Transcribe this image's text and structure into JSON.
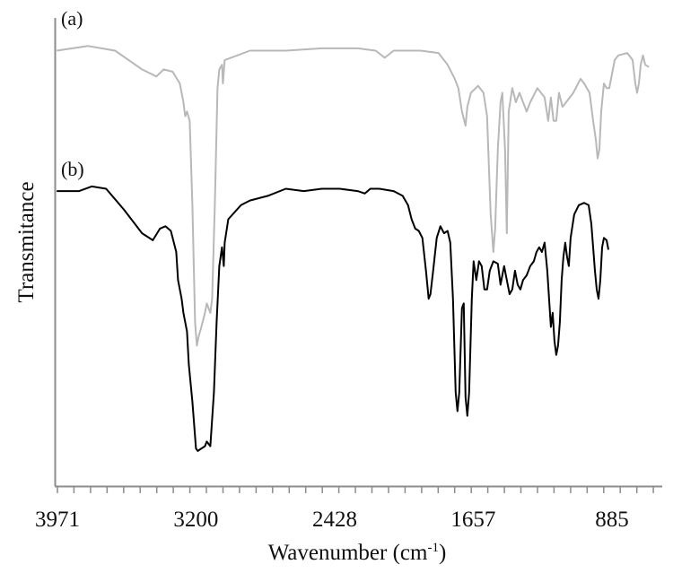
{
  "chart_data": {
    "type": "line",
    "title": "",
    "xlabel": "Wavenumber (cm-1)",
    "xlabel_main": "Wavenumber (cm",
    "xlabel_sup": "-1",
    "xlabel_close": ")",
    "ylabel": "Transmitance",
    "x_reversed": true,
    "xlim": [
      4000,
      600
    ],
    "x_ticks": [
      3971,
      3200,
      2428,
      1657,
      885
    ],
    "x_tick_labels": [
      "3971",
      "3200",
      "2428",
      "1657",
      "885"
    ],
    "y_ticks": [],
    "grid": false,
    "legend": null,
    "annotations": [
      "(a)",
      "(b)"
    ],
    "series": [
      {
        "name": "(a)",
        "color": "#b8b8b8",
        "points": [
          [
            3975,
            0.93
          ],
          [
            3800,
            0.94
          ],
          [
            3650,
            0.93
          ],
          [
            3500,
            0.89
          ],
          [
            3420,
            0.875
          ],
          [
            3380,
            0.89
          ],
          [
            3330,
            0.885
          ],
          [
            3290,
            0.86
          ],
          [
            3270,
            0.82
          ],
          [
            3260,
            0.79
          ],
          [
            3250,
            0.8
          ],
          [
            3235,
            0.78
          ],
          [
            3220,
            0.6
          ],
          [
            3205,
            0.35
          ],
          [
            3195,
            0.3
          ],
          [
            3185,
            0.32
          ],
          [
            3170,
            0.34
          ],
          [
            3150,
            0.37
          ],
          [
            3140,
            0.39
          ],
          [
            3120,
            0.37
          ],
          [
            3110,
            0.4
          ],
          [
            3095,
            0.6
          ],
          [
            3080,
            0.85
          ],
          [
            3070,
            0.89
          ],
          [
            3055,
            0.9
          ],
          [
            3050,
            0.86
          ],
          [
            3040,
            0.91
          ],
          [
            2900,
            0.93
          ],
          [
            2700,
            0.93
          ],
          [
            2500,
            0.935
          ],
          [
            2300,
            0.935
          ],
          [
            2200,
            0.93
          ],
          [
            2150,
            0.915
          ],
          [
            2100,
            0.93
          ],
          [
            1950,
            0.93
          ],
          [
            1850,
            0.925
          ],
          [
            1800,
            0.9
          ],
          [
            1760,
            0.87
          ],
          [
            1740,
            0.85
          ],
          [
            1720,
            0.8
          ],
          [
            1700,
            0.77
          ],
          [
            1690,
            0.81
          ],
          [
            1670,
            0.84
          ],
          [
            1630,
            0.855
          ],
          [
            1600,
            0.84
          ],
          [
            1580,
            0.79
          ],
          [
            1560,
            0.58
          ],
          [
            1545,
            0.5
          ],
          [
            1535,
            0.55
          ],
          [
            1520,
            0.72
          ],
          [
            1505,
            0.82
          ],
          [
            1495,
            0.84
          ],
          [
            1480,
            0.72
          ],
          [
            1470,
            0.54
          ],
          [
            1460,
            0.8
          ],
          [
            1440,
            0.85
          ],
          [
            1420,
            0.82
          ],
          [
            1400,
            0.84
          ],
          [
            1380,
            0.82
          ],
          [
            1360,
            0.8
          ],
          [
            1340,
            0.82
          ],
          [
            1300,
            0.85
          ],
          [
            1260,
            0.83
          ],
          [
            1240,
            0.78
          ],
          [
            1225,
            0.83
          ],
          [
            1210,
            0.78
          ],
          [
            1195,
            0.78
          ],
          [
            1180,
            0.84
          ],
          [
            1160,
            0.81
          ],
          [
            1140,
            0.82
          ],
          [
            1100,
            0.84
          ],
          [
            1060,
            0.87
          ],
          [
            1040,
            0.86
          ],
          [
            1010,
            0.84
          ],
          [
            990,
            0.78
          ],
          [
            975,
            0.74
          ],
          [
            965,
            0.7
          ],
          [
            955,
            0.72
          ],
          [
            945,
            0.8
          ],
          [
            930,
            0.86
          ],
          [
            915,
            0.85
          ],
          [
            900,
            0.85
          ],
          [
            870,
            0.91
          ],
          [
            850,
            0.92
          ],
          [
            800,
            0.925
          ],
          [
            770,
            0.91
          ],
          [
            755,
            0.86
          ],
          [
            745,
            0.84
          ],
          [
            735,
            0.86
          ],
          [
            725,
            0.9
          ],
          [
            712,
            0.92
          ],
          [
            700,
            0.9
          ],
          [
            680,
            0.895
          ]
        ]
      },
      {
        "name": "(b)",
        "color": "#000000",
        "points": [
          [
            3975,
            0.63
          ],
          [
            3850,
            0.63
          ],
          [
            3780,
            0.64
          ],
          [
            3700,
            0.635
          ],
          [
            3600,
            0.59
          ],
          [
            3500,
            0.54
          ],
          [
            3440,
            0.525
          ],
          [
            3400,
            0.55
          ],
          [
            3370,
            0.555
          ],
          [
            3340,
            0.545
          ],
          [
            3310,
            0.5
          ],
          [
            3300,
            0.44
          ],
          [
            3280,
            0.4
          ],
          [
            3270,
            0.37
          ],
          [
            3260,
            0.35
          ],
          [
            3250,
            0.33
          ],
          [
            3240,
            0.26
          ],
          [
            3220,
            0.18
          ],
          [
            3200,
            0.08
          ],
          [
            3190,
            0.075
          ],
          [
            3170,
            0.08
          ],
          [
            3150,
            0.085
          ],
          [
            3140,
            0.095
          ],
          [
            3120,
            0.085
          ],
          [
            3100,
            0.2
          ],
          [
            3085,
            0.35
          ],
          [
            3070,
            0.47
          ],
          [
            3055,
            0.51
          ],
          [
            3045,
            0.47
          ],
          [
            3040,
            0.52
          ],
          [
            3020,
            0.57
          ],
          [
            2950,
            0.6
          ],
          [
            2900,
            0.61
          ],
          [
            2800,
            0.62
          ],
          [
            2700,
            0.635
          ],
          [
            2600,
            0.63
          ],
          [
            2500,
            0.635
          ],
          [
            2400,
            0.635
          ],
          [
            2300,
            0.63
          ],
          [
            2260,
            0.625
          ],
          [
            2230,
            0.635
          ],
          [
            2180,
            0.635
          ],
          [
            2100,
            0.63
          ],
          [
            2050,
            0.62
          ],
          [
            2020,
            0.6
          ],
          [
            2000,
            0.57
          ],
          [
            1980,
            0.55
          ],
          [
            1960,
            0.545
          ],
          [
            1940,
            0.53
          ],
          [
            1920,
            0.46
          ],
          [
            1905,
            0.4
          ],
          [
            1895,
            0.41
          ],
          [
            1880,
            0.46
          ],
          [
            1860,
            0.53
          ],
          [
            1840,
            0.555
          ],
          [
            1820,
            0.54
          ],
          [
            1800,
            0.545
          ],
          [
            1785,
            0.52
          ],
          [
            1770,
            0.4
          ],
          [
            1755,
            0.2
          ],
          [
            1745,
            0.16
          ],
          [
            1735,
            0.2
          ],
          [
            1720,
            0.38
          ],
          [
            1710,
            0.39
          ],
          [
            1700,
            0.19
          ],
          [
            1690,
            0.15
          ],
          [
            1680,
            0.2
          ],
          [
            1665,
            0.4
          ],
          [
            1655,
            0.48
          ],
          [
            1640,
            0.44
          ],
          [
            1625,
            0.48
          ],
          [
            1610,
            0.47
          ],
          [
            1595,
            0.42
          ],
          [
            1580,
            0.42
          ],
          [
            1565,
            0.46
          ],
          [
            1545,
            0.48
          ],
          [
            1520,
            0.475
          ],
          [
            1505,
            0.43
          ],
          [
            1495,
            0.45
          ],
          [
            1485,
            0.47
          ],
          [
            1470,
            0.44
          ],
          [
            1455,
            0.41
          ],
          [
            1440,
            0.42
          ],
          [
            1425,
            0.46
          ],
          [
            1410,
            0.43
          ],
          [
            1395,
            0.42
          ],
          [
            1380,
            0.44
          ],
          [
            1360,
            0.45
          ],
          [
            1340,
            0.47
          ],
          [
            1320,
            0.48
          ],
          [
            1305,
            0.5
          ],
          [
            1290,
            0.51
          ],
          [
            1275,
            0.5
          ],
          [
            1260,
            0.52
          ],
          [
            1245,
            0.46
          ],
          [
            1235,
            0.4
          ],
          [
            1225,
            0.34
          ],
          [
            1215,
            0.37
          ],
          [
            1205,
            0.31
          ],
          [
            1195,
            0.28
          ],
          [
            1185,
            0.3
          ],
          [
            1175,
            0.35
          ],
          [
            1165,
            0.44
          ],
          [
            1155,
            0.49
          ],
          [
            1145,
            0.52
          ],
          [
            1135,
            0.49
          ],
          [
            1125,
            0.47
          ],
          [
            1115,
            0.53
          ],
          [
            1095,
            0.58
          ],
          [
            1070,
            0.6
          ],
          [
            1040,
            0.605
          ],
          [
            1015,
            0.6
          ],
          [
            1000,
            0.56
          ],
          [
            990,
            0.51
          ],
          [
            980,
            0.46
          ],
          [
            970,
            0.42
          ],
          [
            960,
            0.4
          ],
          [
            950,
            0.44
          ],
          [
            940,
            0.51
          ],
          [
            930,
            0.53
          ],
          [
            915,
            0.525
          ],
          [
            905,
            0.505
          ]
        ]
      }
    ]
  },
  "figure": {
    "panel_a_label": "(a)",
    "panel_b_label": "(b)"
  }
}
